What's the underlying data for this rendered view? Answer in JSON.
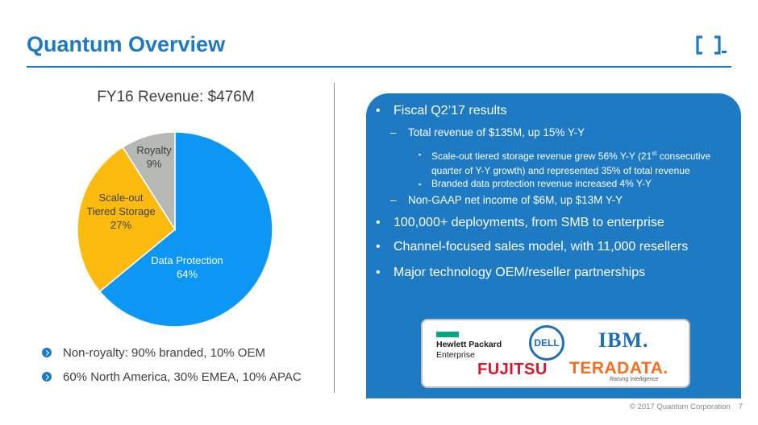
{
  "slide": {
    "title": "Quantum Overview",
    "footer_copyright": "© 2017 Quantum Corporation",
    "page_number": "7"
  },
  "chart_data": {
    "type": "pie",
    "title": "FY16 Revenue: $476M",
    "slices": [
      {
        "label": "Data Protection",
        "value": 64,
        "display": "64%",
        "color": "#0d97f5",
        "label_color": "#ffffff"
      },
      {
        "label": "Scale-out Tiered Storage",
        "value": 27,
        "display": "27%",
        "color": "#fdbb0f",
        "label_color": "#404040"
      },
      {
        "label": "Royalty",
        "value": 9,
        "display": "9%",
        "color": "#b6b8b3",
        "label_color": "#404040"
      }
    ]
  },
  "left_bullets": [
    "Non-royalty: 90% branded, 10% OEM",
    "60% North America, 30% EMEA, 10% APAC"
  ],
  "panel": {
    "l1_results": "Fiscal Q2’17 results",
    "l2_revenue": "Total revenue of $135M, up 15% Y-Y",
    "l3_scaleout_a": "Scale-out tiered storage revenue grew 56% Y-Y (21",
    "l3_scaleout_sup": "st",
    "l3_scaleout_b": " consecutive quarter of Y-Y growth) and represented 35% of total revenue",
    "l3_branded": "Branded data protection revenue increased 4% Y-Y",
    "l2_income": "Non-GAAP net income of $6M, up $13M Y-Y",
    "l1_deployments": "100,000+ deployments, from SMB to enterprise",
    "l1_channel": "Channel-focused sales model, with 11,000 resellers",
    "l1_partnerships": "Major technology OEM/reseller partnerships"
  },
  "partners": {
    "hpe_line1": "Hewlett Packard",
    "hpe_line2": "Enterprise",
    "dell": "DELL",
    "ibm": "IBM.",
    "fujitsu": "FUJITSU",
    "teradata": "TERADATA.",
    "teradata_tagline": "Raising Intelligence"
  },
  "colors": {
    "brand_blue": "#1d7ac2",
    "panel_blue": "#1f7ac4"
  }
}
